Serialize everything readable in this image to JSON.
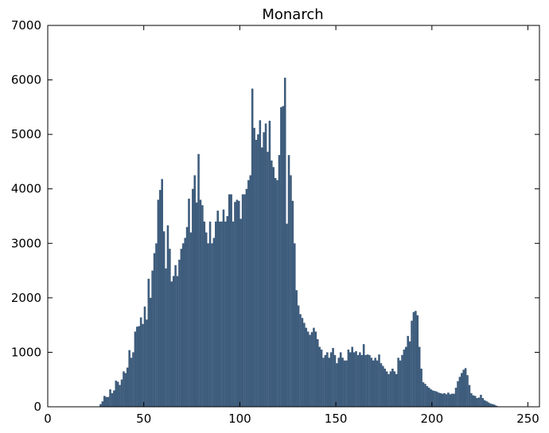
{
  "chart_data": {
    "type": "bar",
    "title": "Monarch",
    "xlabel": "",
    "ylabel": "",
    "xlim": [
      0,
      256
    ],
    "ylim": [
      0,
      7000
    ],
    "xticks": [
      0,
      50,
      100,
      150,
      200,
      250
    ],
    "yticks": [
      0,
      1000,
      2000,
      3000,
      4000,
      5000,
      6000,
      7000
    ],
    "grid": false,
    "bar_color": "#3e5c7c",
    "series": [
      {
        "x_start": 0,
        "bin_width": 1,
        "values": [
          0,
          0,
          0,
          0,
          0,
          0,
          0,
          0,
          0,
          0,
          0,
          0,
          0,
          0,
          0,
          0,
          0,
          0,
          0,
          0,
          0,
          0,
          0,
          0,
          0,
          0,
          0,
          50,
          100,
          200,
          180,
          180,
          320,
          250,
          300,
          480,
          460,
          400,
          500,
          650,
          620,
          720,
          1040,
          900,
          1000,
          1380,
          1470,
          1480,
          1640,
          1520,
          1840,
          1600,
          2350,
          2000,
          2500,
          2820,
          3000,
          3800,
          3980,
          4180,
          3220,
          2540,
          3330,
          2900,
          2300,
          2400,
          2600,
          2400,
          2700,
          2900,
          3000,
          3100,
          3300,
          3820,
          3200,
          4000,
          4250,
          3750,
          4640,
          3800,
          3700,
          3400,
          3200,
          3000,
          3400,
          3000,
          3100,
          3400,
          3600,
          3400,
          3400,
          3620,
          3400,
          3500,
          3900,
          3900,
          3400,
          3760,
          3800,
          3780,
          3450,
          3900,
          3900,
          4000,
          4160,
          4250,
          5840,
          5120,
          4900,
          5000,
          5260,
          4760,
          5040,
          5200,
          4680,
          5250,
          4520,
          4400,
          4200,
          4160,
          4620,
          5500,
          5520,
          6040,
          3360,
          4620,
          4250,
          3780,
          3000,
          2140,
          1860,
          1700,
          1630,
          1540,
          1450,
          1380,
          1320,
          1370,
          1450,
          1380,
          1240,
          1100,
          1050,
          900,
          950,
          1000,
          900,
          1000,
          1080,
          950,
          800,
          900,
          1000,
          900,
          850,
          850,
          1050,
          1000,
          1100,
          1000,
          1020,
          950,
          1000,
          950,
          1150,
          950,
          960,
          950,
          900,
          850,
          900,
          850,
          960,
          800,
          750,
          700,
          650,
          600,
          650,
          700,
          650,
          600,
          900,
          850,
          950,
          1050,
          1100,
          1300,
          1200,
          1580,
          1740,
          1760,
          1680,
          1100,
          700,
          450,
          420,
          380,
          350,
          320,
          300,
          290,
          280,
          260,
          250,
          240,
          250,
          230,
          260,
          230,
          240,
          240,
          350,
          470,
          550,
          620,
          680,
          710,
          580,
          400,
          250,
          210,
          200,
          160,
          170,
          220,
          160,
          120,
          100,
          80,
          60,
          50,
          40,
          20,
          10,
          0,
          0,
          0,
          0,
          0,
          0,
          0,
          0,
          0,
          0,
          0,
          0,
          0,
          0,
          0,
          0,
          0,
          0,
          0,
          0,
          0
        ]
      }
    ]
  }
}
